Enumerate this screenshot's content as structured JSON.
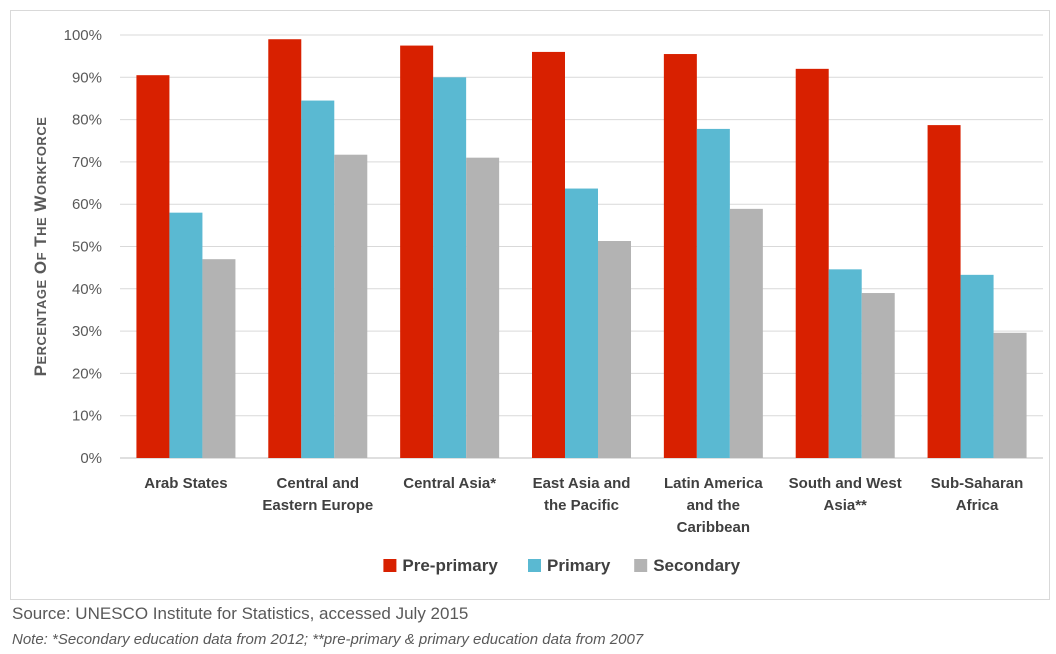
{
  "chart_data": {
    "type": "bar",
    "ylabel": "Percentage of the Workforce",
    "ylim": [
      0,
      100
    ],
    "yticks": [
      "0%",
      "10%",
      "20%",
      "30%",
      "40%",
      "50%",
      "60%",
      "70%",
      "80%",
      "90%",
      "100%"
    ],
    "grid": true,
    "legend_position": "bottom",
    "categories": [
      [
        "Arab States"
      ],
      [
        "Central and",
        "Eastern Europe"
      ],
      [
        "Central Asia*"
      ],
      [
        "East Asia and",
        "the Pacific"
      ],
      [
        "Latin America",
        "and the",
        "Caribbean"
      ],
      [
        "South and West",
        "Asia**"
      ],
      [
        "Sub-Saharan",
        "Africa"
      ]
    ],
    "series": [
      {
        "name": "Pre-primary",
        "color": "#d82000",
        "values": [
          90.5,
          99,
          97.5,
          96,
          95.5,
          92,
          78.7
        ]
      },
      {
        "name": "Primary",
        "color": "#5ab9d2",
        "values": [
          58,
          84.5,
          90,
          63.7,
          77.8,
          44.6,
          43.3
        ]
      },
      {
        "name": "Secondary",
        "color": "#b3b3b3",
        "values": [
          47,
          71.7,
          71,
          51.3,
          58.9,
          39,
          29.6
        ]
      }
    ]
  },
  "source": "Source: UNESCO Institute for Statistics, accessed July 2015",
  "note": "Note: *Secondary education data from 2012; **pre-primary & primary education data from 2007"
}
